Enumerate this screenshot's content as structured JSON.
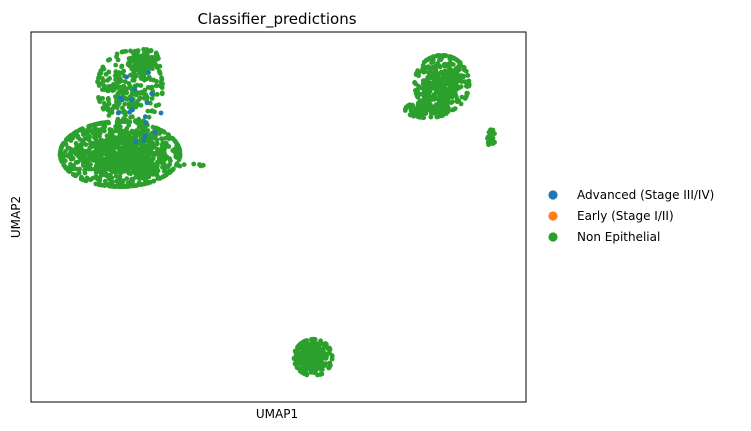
{
  "chart_data": {
    "type": "scatter",
    "title": "Classifier_predictions",
    "xlabel": "UMAP1",
    "ylabel": "UMAP2",
    "xticks": [],
    "yticks": [],
    "grid": false,
    "legend_position": "right",
    "xlim": [
      0,
      100
    ],
    "ylim": [
      0,
      100
    ],
    "series": [
      {
        "name": "Advanced (Stage III/IV)",
        "color": "#1f77b4"
      },
      {
        "name": "Early (Stage I/II)",
        "color": "#ff7f0e"
      },
      {
        "name": "Non Epithelial",
        "color": "#2ca02c"
      }
    ],
    "clusters": [
      {
        "center": [
          18,
          67
        ],
        "spread": [
          11,
          8
        ],
        "count": 1100,
        "series": "Non Epithelial"
      },
      {
        "center": [
          20,
          85
        ],
        "spread": [
          6,
          9
        ],
        "count": 260,
        "series": "Non Epithelial"
      },
      {
        "center": [
          23,
          92
        ],
        "spread": [
          3,
          3
        ],
        "count": 100,
        "series": "Non Epithelial"
      },
      {
        "center": [
          83,
          86
        ],
        "spread": [
          5,
          7
        ],
        "count": 400,
        "series": "Non Epithelial"
      },
      {
        "center": [
          80,
          79
        ],
        "spread": [
          4,
          2
        ],
        "count": 120,
        "series": "Non Epithelial"
      },
      {
        "center": [
          93,
          71
        ],
        "spread": [
          0.7,
          2.5
        ],
        "count": 25,
        "series": "Non Epithelial"
      },
      {
        "center": [
          57,
          12
        ],
        "spread": [
          3.5,
          4.5
        ],
        "count": 260,
        "series": "Non Epithelial"
      },
      {
        "center": [
          33,
          64
        ],
        "spread": [
          3,
          0.6
        ],
        "count": 6,
        "series": "Non Epithelial"
      },
      {
        "center": [
          22,
          80
        ],
        "spread": [
          4,
          9
        ],
        "count": 18,
        "series": "Advanced (Stage III/IV)"
      }
    ]
  }
}
